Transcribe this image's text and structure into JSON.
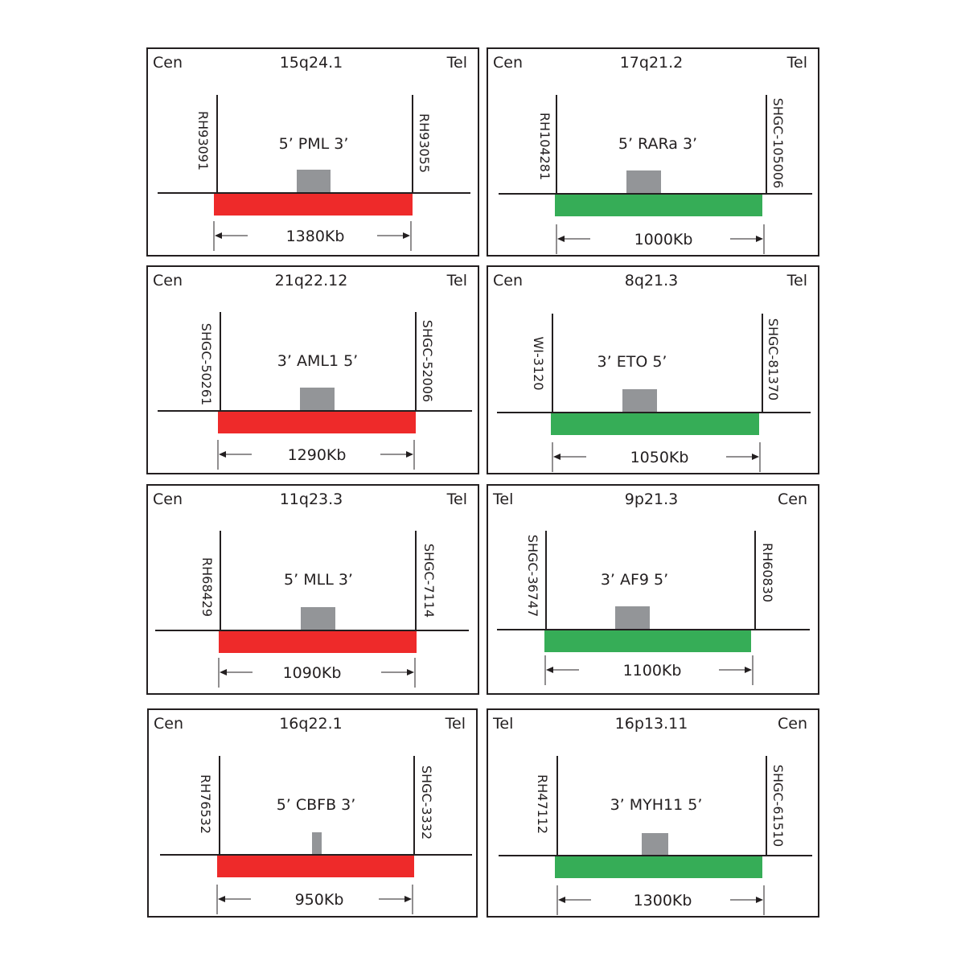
{
  "colors": {
    "red_probe": "#ee2a2a",
    "green_probe": "#36ad57",
    "gene_box": "#939598",
    "line": "#231f20"
  },
  "panels": [
    {
      "left_end": "Cen",
      "band": "15q24.1",
      "right_end": "Tel",
      "left_marker": "RH93091",
      "right_marker": "RH93055",
      "gene": "5’ PML 3’",
      "size": "1380Kb",
      "probe_color": "red"
    },
    {
      "left_end": "Cen",
      "band": "17q21.2",
      "right_end": "Tel",
      "left_marker": "RH104281",
      "right_marker": "SHGC-105006",
      "gene": "5’ RARa 3’",
      "size": "1000Kb",
      "probe_color": "green"
    },
    {
      "left_end": "Cen",
      "band": "21q22.12",
      "right_end": "Tel",
      "left_marker": "SHGC-50261",
      "right_marker": "SHGC-52006",
      "gene": "3’ AML1 5’",
      "size": "1290Kb",
      "probe_color": "red"
    },
    {
      "left_end": "Cen",
      "band": "8q21.3",
      "right_end": "Tel",
      "left_marker": "WI-3120",
      "right_marker": "SHGC-81370",
      "gene": "3’ ETO 5’",
      "size": "1050Kb",
      "probe_color": "green"
    },
    {
      "left_end": "Cen",
      "band": "11q23.3",
      "right_end": "Tel",
      "left_marker": "RH68429",
      "right_marker": "SHGC-7114",
      "gene": "5’ MLL 3’",
      "size": "1090Kb",
      "probe_color": "red"
    },
    {
      "left_end": "Tel",
      "band": "9p21.3",
      "right_end": "Cen",
      "left_marker": "SHGC-36747",
      "right_marker": "RH60830",
      "gene": "3’ AF9 5’",
      "size": "1100Kb",
      "probe_color": "green"
    },
    {
      "left_end": "Cen",
      "band": "16q22.1",
      "right_end": "Tel",
      "left_marker": "RH76532",
      "right_marker": "SHGC-3332",
      "gene": "5’ CBFB 3’",
      "size": "950Kb",
      "probe_color": "red"
    },
    {
      "left_end": "Tel",
      "band": "16p13.11",
      "right_end": "Cen",
      "left_marker": "RH47112",
      "right_marker": "SHGC-61510",
      "gene": "3’ MYH11 5’",
      "size": "1300Kb",
      "probe_color": "green"
    }
  ]
}
